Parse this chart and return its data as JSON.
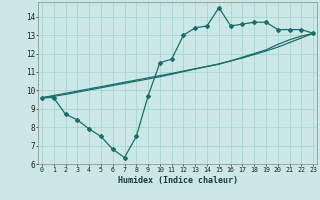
{
  "xlabel": "Humidex (Indice chaleur)",
  "bg_color": "#cce8e6",
  "grid_color": "#aad4d0",
  "line_color": "#1a6e6e",
  "x": [
    0,
    1,
    2,
    3,
    4,
    5,
    6,
    7,
    8,
    9,
    10,
    11,
    12,
    13,
    14,
    15,
    16,
    17,
    18,
    19,
    20,
    21,
    22,
    23
  ],
  "jagged": [
    9.6,
    9.6,
    8.7,
    8.4,
    7.9,
    7.5,
    6.8,
    6.35,
    7.5,
    9.7,
    11.5,
    11.7,
    13.0,
    13.4,
    13.5,
    14.5,
    13.5,
    13.6,
    13.7,
    13.7,
    13.3,
    13.3,
    13.3,
    13.1
  ],
  "trend1": [
    9.6,
    9.72,
    9.84,
    9.96,
    10.08,
    10.2,
    10.32,
    10.44,
    10.56,
    10.68,
    10.8,
    10.92,
    11.05,
    11.18,
    11.3,
    11.42,
    11.6,
    11.8,
    12.0,
    12.2,
    12.5,
    12.75,
    12.95,
    13.1
  ],
  "trend2": [
    9.6,
    9.68,
    9.78,
    9.9,
    10.02,
    10.14,
    10.26,
    10.38,
    10.5,
    10.62,
    10.74,
    10.88,
    11.02,
    11.16,
    11.3,
    11.44,
    11.6,
    11.76,
    11.95,
    12.14,
    12.35,
    12.6,
    12.85,
    13.1
  ],
  "ylim": [
    6,
    14.8
  ],
  "yticks": [
    6,
    7,
    8,
    9,
    10,
    11,
    12,
    13,
    14
  ],
  "xticks": [
    0,
    1,
    2,
    3,
    4,
    5,
    6,
    7,
    8,
    9,
    10,
    11,
    12,
    13,
    14,
    15,
    16,
    17,
    18,
    19,
    20,
    21,
    22,
    23
  ],
  "xlim": [
    -0.3,
    23.3
  ]
}
